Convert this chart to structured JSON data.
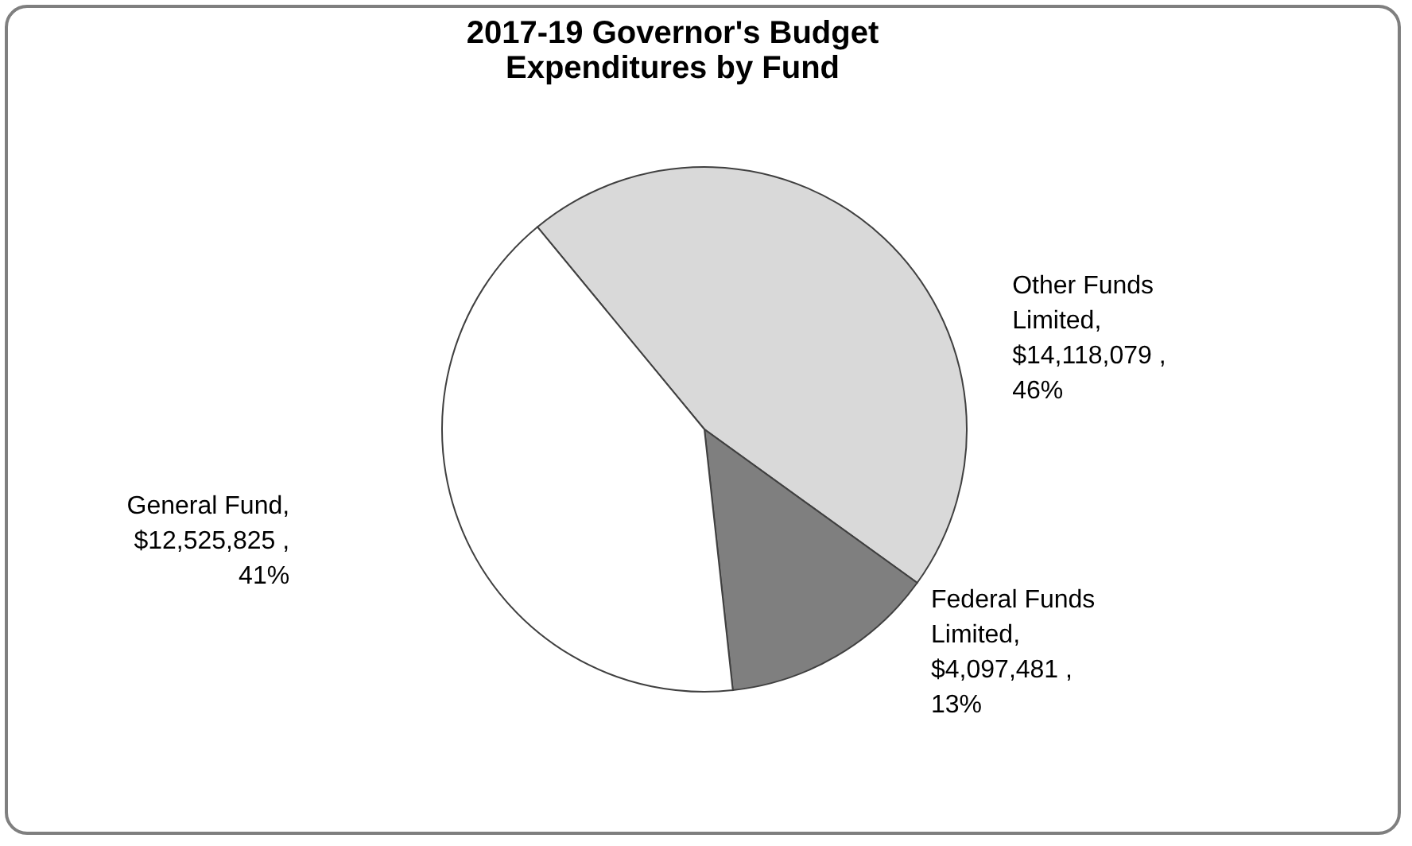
{
  "chart_data": {
    "type": "pie",
    "title": "2017-19 Governor's Budget\nExpenditures by Fund",
    "categories": [
      "Other Funds Limited",
      "Federal Funds Limited",
      "General Fund"
    ],
    "values": [
      14118079,
      4097481,
      12525825
    ],
    "value_labels": [
      ", $14,118,079 , 46%",
      ", $4,097,481 , 13%",
      ", $12,525,825 , 41%"
    ],
    "colors": [
      "#d9d9d9",
      "#7f7f7f",
      "#ffffff"
    ],
    "legend": false
  }
}
